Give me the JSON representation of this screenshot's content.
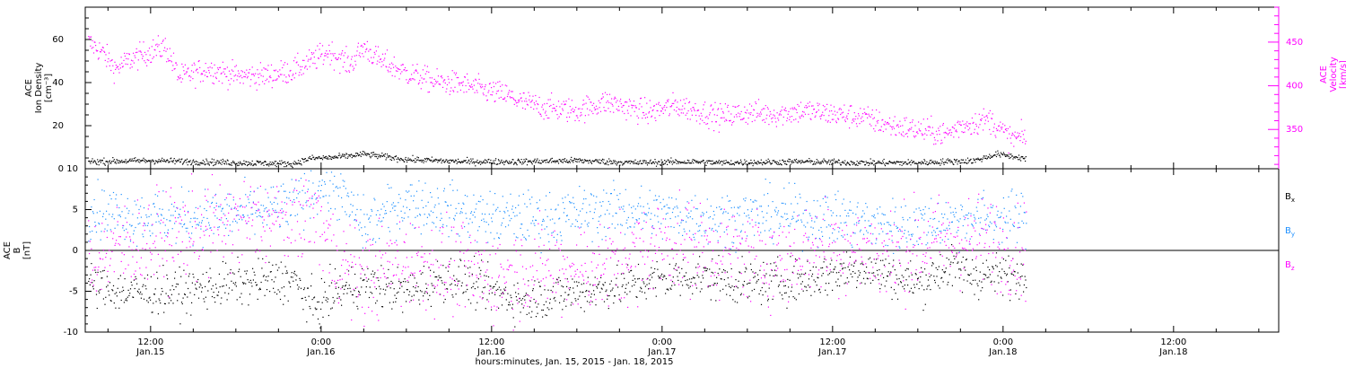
{
  "chart_data": {
    "type": "scatter",
    "xlabel": "hours:minutes, Jan. 15, 2015 - Jan. 18, 2015",
    "x_ticks": [
      {
        "time": "12:00",
        "date": "Jan.15"
      },
      {
        "time": "0:00",
        "date": "Jan.16"
      },
      {
        "time": "12:00",
        "date": "Jan.16"
      },
      {
        "time": "0:00",
        "date": "Jan.17"
      },
      {
        "time": "12:00",
        "date": "Jan.17"
      },
      {
        "time": "0:00",
        "date": "Jan.18"
      },
      {
        "time": "12:00",
        "date": "Jan.18"
      }
    ],
    "x_range_hours": [
      7.4,
      91.4
    ],
    "data_end_hour": 73.6,
    "colors": {
      "black": "#000000",
      "magenta": "#ff00ff",
      "blue": "#1e90ff"
    },
    "panels": [
      {
        "id": "ion",
        "ylabel_lines": [
          "ACE",
          "Ion Density",
          "[cm⁻³]"
        ],
        "ylim": [
          0,
          75
        ],
        "yticks": [
          0,
          20,
          40,
          60
        ],
        "right_axis": {
          "ylabel_lines": [
            "ACE",
            "Velocity",
            "[km/s]"
          ],
          "ylim": [
            305,
            490
          ],
          "yticks": [
            350,
            400,
            450
          ],
          "color": "#ff00ff"
        },
        "series": [
          {
            "name": "Ion Density",
            "axis": "left",
            "color": "#000000",
            "noise": 0.7,
            "points": [
              [
                7.6,
                3.5
              ],
              [
                12,
                4
              ],
              [
                18,
                3
              ],
              [
                22,
                2.5
              ],
              [
                23.2,
                5
              ],
              [
                25,
                5.5
              ],
              [
                27,
                7
              ],
              [
                30,
                4.5
              ],
              [
                34,
                3.5
              ],
              [
                38,
                3.5
              ],
              [
                42,
                4
              ],
              [
                46,
                3
              ],
              [
                50,
                3.5
              ],
              [
                52,
                3
              ],
              [
                58,
                3.5
              ],
              [
                62,
                3
              ],
              [
                66,
                3
              ],
              [
                70,
                4
              ],
              [
                71.5,
                7
              ],
              [
                73.6,
                5
              ]
            ]
          },
          {
            "name": "Velocity",
            "axis": "right",
            "color": "#ff00ff",
            "noise": 7,
            "points": [
              [
                7.6,
                450
              ],
              [
                8.5,
                440
              ],
              [
                9.5,
                420
              ],
              [
                10.5,
                430
              ],
              [
                12,
                440
              ],
              [
                13,
                445
              ],
              [
                14,
                410
              ],
              [
                16,
                420
              ],
              [
                18,
                412
              ],
              [
                20,
                412
              ],
              [
                22,
                418
              ],
              [
                23.2,
                428
              ],
              [
                24.5,
                440
              ],
              [
                26,
                425
              ],
              [
                27,
                445
              ],
              [
                28,
                430
              ],
              [
                30,
                415
              ],
              [
                32,
                405
              ],
              [
                34,
                402
              ],
              [
                35.5,
                395
              ],
              [
                37,
                390
              ],
              [
                38,
                382
              ],
              [
                40,
                375
              ],
              [
                42,
                372
              ],
              [
                44,
                382
              ],
              [
                45,
                378
              ],
              [
                47,
                370
              ],
              [
                49,
                378
              ],
              [
                52,
                365
              ],
              [
                54,
                370
              ],
              [
                56,
                368
              ],
              [
                58,
                372
              ],
              [
                60,
                368
              ],
              [
                62,
                365
              ],
              [
                64,
                355
              ],
              [
                66,
                350
              ],
              [
                68,
                345
              ],
              [
                69,
                355
              ],
              [
                71,
                362
              ],
              [
                72.5,
                340
              ],
              [
                73.6,
                342
              ]
            ]
          }
        ]
      },
      {
        "id": "mag",
        "ylabel_lines": [
          "ACE",
          "B",
          "[nT]"
        ],
        "ylim": [
          -10,
          10
        ],
        "yticks": [
          -10,
          -5,
          0,
          5,
          10
        ],
        "zero_line": true,
        "legend": [
          "Bx",
          "By",
          "Bz"
        ],
        "series": [
          {
            "name": "Bx",
            "color": "#000000",
            "noise": 1.3,
            "points": [
              [
                7.6,
                -4
              ],
              [
                10,
                -5
              ],
              [
                14,
                -5
              ],
              [
                18,
                -4
              ],
              [
                22,
                -3.5
              ],
              [
                23.5,
                -7
              ],
              [
                25,
                -5
              ],
              [
                27,
                -4
              ],
              [
                30,
                -5
              ],
              [
                33,
                -3
              ],
              [
                36,
                -5
              ],
              [
                38,
                -6
              ],
              [
                42,
                -5
              ],
              [
                46,
                -4
              ],
              [
                50,
                -3
              ],
              [
                54,
                -4
              ],
              [
                58,
                -3.5
              ],
              [
                62,
                -2
              ],
              [
                66,
                -4
              ],
              [
                68,
                -2
              ],
              [
                70,
                -3
              ],
              [
                73.6,
                -3
              ]
            ]
          },
          {
            "name": "By",
            "color": "#1e90ff",
            "noise": 1.6,
            "points": [
              [
                7.6,
                5
              ],
              [
                10,
                4.5
              ],
              [
                14,
                4
              ],
              [
                18,
                4.5
              ],
              [
                22,
                5.5
              ],
              [
                23.5,
                8
              ],
              [
                25,
                7.5
              ],
              [
                27,
                3
              ],
              [
                30,
                6
              ],
              [
                33,
                5
              ],
              [
                36,
                4
              ],
              [
                40,
                4
              ],
              [
                44,
                5
              ],
              [
                48,
                4.5
              ],
              [
                52,
                4
              ],
              [
                56,
                4.5
              ],
              [
                60,
                4
              ],
              [
                64,
                3
              ],
              [
                67,
                3.5
              ],
              [
                70,
                4
              ],
              [
                73.6,
                4
              ]
            ]
          },
          {
            "name": "Bz",
            "color": "#ff00ff",
            "noise": 2.8,
            "points": [
              [
                7.6,
                -1
              ],
              [
                10,
                0.5
              ],
              [
                14,
                2
              ],
              [
                18,
                3.5
              ],
              [
                22,
                4
              ],
              [
                23.5,
                5
              ],
              [
                25,
                -1
              ],
              [
                27,
                -3
              ],
              [
                30,
                -1
              ],
              [
                33,
                -2
              ],
              [
                36,
                -3
              ],
              [
                40,
                -2
              ],
              [
                44,
                -2
              ],
              [
                48,
                1
              ],
              [
                52,
                0
              ],
              [
                56,
                -1
              ],
              [
                60,
                1
              ],
              [
                64,
                -0.5
              ],
              [
                67,
                1
              ],
              [
                70,
                1.5
              ],
              [
                73.6,
                0
              ]
            ]
          }
        ]
      }
    ]
  }
}
